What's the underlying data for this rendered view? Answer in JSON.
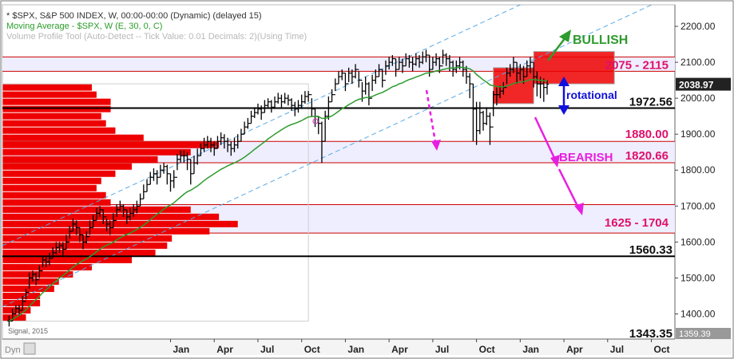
{
  "header": {
    "line1": "* $SPX, S&P 500 INDEX, W, 00:00-00:00 (Dynamic) (delayed 15)",
    "line2": "Moving Average - $SPX, W (E, 30, 0, C)",
    "line3": "Volume Profile Tool (Auto-Detect -- Tick Value: 0.01 Decimals: 2)(Using Time)"
  },
  "footer": {
    "dyn": "Dyn",
    "signal": "Signal, 2015"
  },
  "colors": {
    "price": "#000000",
    "ma": "#2e9b2e",
    "profile": "#ee0000",
    "zone": "#eeeeff",
    "zone_border": "#cc0000",
    "channel": "#5aa9e6",
    "bullish": "#2e9b2e",
    "bearish": "#e91ee0",
    "rotational": "#1010dd",
    "current_price_bg": "#222222"
  },
  "chart_data": {
    "type": "line",
    "subtype": "ohlc-weekly",
    "ylim": [
      1330,
      2260
    ],
    "yticks": [
      "2200.00",
      "2100.00",
      "2000.00",
      "1900.00",
      "1800.00",
      "1700.00",
      "1600.00",
      "1500.00",
      "1400.00"
    ],
    "ytick_values": [
      2200,
      2100,
      2000,
      1900,
      1800,
      1700,
      1600,
      1500,
      1400
    ],
    "xtick_labels": [
      "Jan",
      "Apr",
      "Jul",
      "Oct",
      "Jan",
      "Apr",
      "Jul",
      "Oct",
      "Jan",
      "Apr",
      "Jul",
      "Oct"
    ],
    "xtick_weeks": [
      0,
      13,
      26,
      39,
      52,
      65,
      78,
      91,
      104,
      117,
      130,
      143
    ],
    "weeks_visible": 200,
    "week_offset": -50,
    "first_week_index": -48,
    "close": [
      1380,
      1400,
      1415,
      1410,
      1435,
      1460,
      1500,
      1510,
      1495,
      1520,
      1550,
      1545,
      1555,
      1570,
      1585,
      1590,
      1580,
      1600,
      1630,
      1650,
      1640,
      1620,
      1600,
      1615,
      1640,
      1660,
      1680,
      1690,
      1670,
      1650,
      1640,
      1660,
      1690,
      1700,
      1690,
      1670,
      1680,
      1690,
      1700,
      1720,
      1740,
      1760,
      1780,
      1790,
      1780,
      1800,
      1810,
      1790,
      1770,
      1780,
      1830,
      1840,
      1840,
      1830,
      1790,
      1820,
      1840,
      1860,
      1870,
      1880,
      1870,
      1860,
      1880,
      1890,
      1880,
      1870,
      1860,
      1870,
      1880,
      1900,
      1920,
      1930,
      1950,
      1960,
      1970,
      1960,
      1980,
      1990,
      1975,
      1990,
      2000,
      1990,
      2000,
      1995,
      1980,
      1970,
      1980,
      1990,
      2005,
      2010,
      1970,
      1950,
      1930,
      1880,
      1950,
      1990,
      2010,
      2040,
      2060,
      2070,
      2040,
      2070,
      2060,
      2080,
      2050,
      2020,
      2040,
      2000,
      2050,
      2060,
      2080,
      2050,
      2090,
      2100,
      2110,
      2080,
      2100,
      2090,
      2110,
      2100,
      2095,
      2110,
      2100,
      2115,
      2120,
      2080,
      2100,
      2110,
      2090,
      2120,
      2110,
      2100,
      2080,
      2090,
      2100,
      2080,
      2060,
      2040,
      1970,
      1910,
      1960,
      1930,
      1950,
      1920,
      2010,
      2010,
      2020,
      2030,
      2070,
      2080,
      2100,
      2070,
      2080,
      2060,
      2090,
      2100,
      2060,
      2040,
      2040,
      2030,
      2039
    ],
    "high": [
      1395,
      1415,
      1425,
      1425,
      1450,
      1470,
      1515,
      1520,
      1515,
      1535,
      1560,
      1560,
      1570,
      1585,
      1600,
      1600,
      1600,
      1620,
      1645,
      1665,
      1660,
      1640,
      1620,
      1630,
      1660,
      1675,
      1695,
      1700,
      1690,
      1665,
      1660,
      1680,
      1705,
      1715,
      1705,
      1690,
      1695,
      1705,
      1715,
      1735,
      1760,
      1775,
      1795,
      1805,
      1800,
      1815,
      1820,
      1815,
      1790,
      1800,
      1845,
      1855,
      1855,
      1850,
      1830,
      1840,
      1860,
      1875,
      1890,
      1895,
      1890,
      1880,
      1895,
      1905,
      1900,
      1890,
      1880,
      1890,
      1900,
      1915,
      1935,
      1945,
      1965,
      1975,
      1985,
      1980,
      1995,
      2000,
      1995,
      2005,
      2015,
      2010,
      2015,
      2010,
      2000,
      1990,
      1995,
      2010,
      2020,
      2020,
      2000,
      1975,
      1950,
      1935,
      1965,
      2005,
      2025,
      2055,
      2075,
      2080,
      2070,
      2085,
      2080,
      2095,
      2075,
      2045,
      2060,
      2045,
      2065,
      2080,
      2095,
      2080,
      2105,
      2115,
      2120,
      2110,
      2115,
      2110,
      2125,
      2120,
      2115,
      2125,
      2120,
      2130,
      2135,
      2120,
      2115,
      2125,
      2115,
      2135,
      2125,
      2120,
      2105,
      2105,
      2115,
      2105,
      2090,
      2070,
      2040,
      1990,
      1990,
      1965,
      1975,
      1960,
      2020,
      2030,
      2035,
      2045,
      2085,
      2095,
      2115,
      2100,
      2095,
      2090,
      2105,
      2115,
      2100,
      2075,
      2060,
      2055,
      2050
    ],
    "low": [
      1365,
      1380,
      1400,
      1395,
      1410,
      1440,
      1470,
      1490,
      1480,
      1500,
      1530,
      1530,
      1535,
      1555,
      1565,
      1570,
      1560,
      1580,
      1610,
      1630,
      1620,
      1600,
      1580,
      1595,
      1620,
      1640,
      1660,
      1670,
      1650,
      1630,
      1620,
      1640,
      1670,
      1685,
      1670,
      1650,
      1660,
      1670,
      1680,
      1700,
      1720,
      1740,
      1760,
      1770,
      1760,
      1780,
      1790,
      1760,
      1740,
      1750,
      1800,
      1820,
      1820,
      1800,
      1760,
      1790,
      1815,
      1840,
      1850,
      1860,
      1850,
      1840,
      1860,
      1870,
      1860,
      1850,
      1840,
      1850,
      1860,
      1880,
      1900,
      1915,
      1930,
      1945,
      1955,
      1940,
      1960,
      1975,
      1960,
      1970,
      1985,
      1975,
      1985,
      1980,
      1965,
      1950,
      1960,
      1970,
      1985,
      1990,
      1950,
      1920,
      1900,
      1820,
      1880,
      1940,
      1990,
      2020,
      2040,
      2050,
      2020,
      2045,
      2040,
      2055,
      2030,
      1990,
      2010,
      1980,
      2020,
      2040,
      2060,
      2030,
      2065,
      2080,
      2090,
      2060,
      2080,
      2070,
      2090,
      2085,
      2075,
      2090,
      2085,
      2095,
      2100,
      2060,
      2080,
      2090,
      2070,
      2095,
      2090,
      2075,
      2060,
      2070,
      2080,
      2060,
      2040,
      2000,
      1880,
      1870,
      1900,
      1910,
      1925,
      1870,
      1950,
      1980,
      2000,
      2010,
      2040,
      2060,
      2070,
      2040,
      2050,
      2040,
      2060,
      2070,
      2030,
      2005,
      2000,
      1990,
      2010
    ],
    "ma": [
      1380,
      1385,
      1391,
      1396,
      1403,
      1411,
      1421,
      1431,
      1440,
      1449,
      1459,
      1467,
      1475,
      1484,
      1492,
      1500,
      1507,
      1514,
      1522,
      1530,
      1537,
      1543,
      1548,
      1553,
      1559,
      1566,
      1573,
      1580,
      1586,
      1591,
      1595,
      1600,
      1606,
      1612,
      1617,
      1621,
      1625,
      1630,
      1635,
      1641,
      1647,
      1654,
      1662,
      1670,
      1677,
      1684,
      1692,
      1698,
      1703,
      1709,
      1717,
      1725,
      1733,
      1740,
      1744,
      1750,
      1756,
      1763,
      1771,
      1778,
      1784,
      1790,
      1796,
      1802,
      1807,
      1812,
      1816,
      1820,
      1825,
      1830,
      1836,
      1843,
      1850,
      1858,
      1865,
      1872,
      1879,
      1887,
      1893,
      1900,
      1906,
      1912,
      1918,
      1923,
      1927,
      1930,
      1934,
      1938,
      1943,
      1948,
      1949,
      1950,
      1949,
      1944,
      1944,
      1947,
      1951,
      1957,
      1964,
      1971,
      1976,
      1982,
      1987,
      1993,
      1997,
      1999,
      2002,
      2002,
      2005,
      2009,
      2013,
      2016,
      2021,
      2026,
      2032,
      2035,
      2040,
      2043,
      2048,
      2052,
      2055,
      2059,
      2062,
      2066,
      2070,
      2071,
      2073,
      2076,
      2077,
      2080,
      2082,
      2084,
      2084,
      2085,
      2086,
      2086,
      2084,
      2082,
      2076,
      2066,
      2059,
      2051,
      2045,
      2037,
      2035,
      2033,
      2032,
      2032,
      2034,
      2037,
      2041,
      2043,
      2045,
      2046,
      2049,
      2052,
      2052,
      2051,
      2050,
      2049,
      2048
    ],
    "volume_profile": [
      {
        "price": 1390,
        "size": 0.1
      },
      {
        "price": 1410,
        "size": 0.12
      },
      {
        "price": 1430,
        "size": 0.16
      },
      {
        "price": 1450,
        "size": 0.16
      },
      {
        "price": 1470,
        "size": 0.22
      },
      {
        "price": 1490,
        "size": 0.24
      },
      {
        "price": 1510,
        "size": 0.3
      },
      {
        "price": 1530,
        "size": 0.38
      },
      {
        "price": 1550,
        "size": 0.55
      },
      {
        "price": 1570,
        "size": 0.65
      },
      {
        "price": 1590,
        "size": 0.7
      },
      {
        "price": 1610,
        "size": 0.72
      },
      {
        "price": 1630,
        "size": 0.88
      },
      {
        "price": 1650,
        "size": 1.0
      },
      {
        "price": 1670,
        "size": 0.92
      },
      {
        "price": 1690,
        "size": 0.8
      },
      {
        "price": 1710,
        "size": 0.46
      },
      {
        "price": 1730,
        "size": 0.44
      },
      {
        "price": 1750,
        "size": 0.4
      },
      {
        "price": 1770,
        "size": 0.42
      },
      {
        "price": 1790,
        "size": 0.48
      },
      {
        "price": 1810,
        "size": 0.55
      },
      {
        "price": 1830,
        "size": 0.66
      },
      {
        "price": 1850,
        "size": 0.8
      },
      {
        "price": 1870,
        "size": 0.92
      },
      {
        "price": 1890,
        "size": 0.6
      },
      {
        "price": 1910,
        "size": 0.48
      },
      {
        "price": 1930,
        "size": 0.44
      },
      {
        "price": 1950,
        "size": 0.42
      },
      {
        "price": 1970,
        "size": 0.46
      },
      {
        "price": 1990,
        "size": 0.46
      },
      {
        "price": 2010,
        "size": 0.4
      },
      {
        "price": 2030,
        "size": 0.38
      }
    ],
    "profile_max_weeks": 70,
    "recent_profile_boxes": [
      {
        "w0": 96,
        "w1": 108,
        "p0": 1985,
        "p1": 2085
      },
      {
        "w0": 108,
        "w1": 132,
        "p0": 2040,
        "p1": 2130
      }
    ],
    "zones": [
      {
        "label": "2075 - 2115",
        "low": 2075,
        "high": 2115
      },
      {
        "label": "1820.66",
        "low": 1820.66,
        "high": 1880,
        "top_label": "1880.00"
      },
      {
        "label": "1625 - 1704",
        "low": 1625,
        "high": 1704
      }
    ],
    "levels": [
      {
        "label": "1972.56",
        "value": 1972.56
      },
      {
        "label": "1560.33",
        "value": 1560.33
      }
    ],
    "bottom_level": {
      "label": "1343.35",
      "value": 1343.35
    },
    "current_price": {
      "label": "2038.97",
      "value": 2038.97
    },
    "last_tag": {
      "label": "1359.39",
      "value": 1359.39
    },
    "channel": {
      "w0": -50,
      "p0_upper": 1590,
      "p0_lower": 1420,
      "slope": 4.35
    },
    "annotations": {
      "bullish": "BULLISH",
      "bearish": "BEARISH",
      "rotational": "rotational"
    }
  }
}
